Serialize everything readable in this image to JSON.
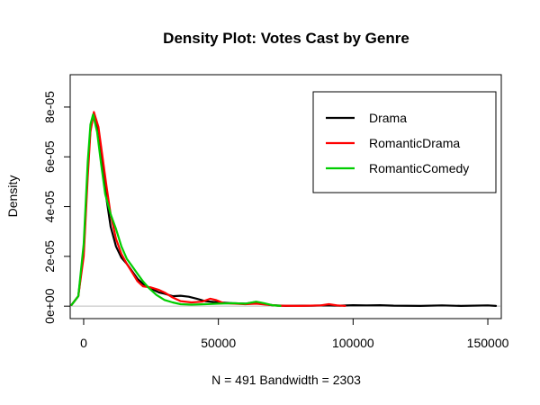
{
  "chart_data": {
    "type": "line",
    "title": "Density Plot: Votes Cast by Genre",
    "xlabel": "N = 491   Bandwidth = 2303",
    "ylabel": "Density",
    "xlim": [
      -5000,
      155000
    ],
    "ylim": [
      -5e-06,
      9.3e-05
    ],
    "x_ticks": [
      0,
      50000,
      100000,
      150000
    ],
    "x_tick_labels": [
      "0",
      "50000",
      "100000",
      "150000"
    ],
    "y_ticks": [
      0,
      2e-05,
      4e-05,
      6e-05,
      8e-05
    ],
    "y_tick_labels": [
      "0e+00",
      "2e-05",
      "4e-05",
      "6e-05",
      "8e-05"
    ],
    "baseline": 0,
    "baseline_color": "#bebebe",
    "legend_position": "top-right",
    "series": [
      {
        "name": "Drama",
        "color": "#000000",
        "points": [
          [
            -4500,
            5e-07
          ],
          [
            -2000,
            4e-06
          ],
          [
            0,
            2.2e-05
          ],
          [
            1500,
            5.5e-05
          ],
          [
            2500,
            7.1e-05
          ],
          [
            3800,
            7.75e-05
          ],
          [
            5500,
            7e-05
          ],
          [
            7000,
            5.6e-05
          ],
          [
            8500,
            4.3e-05
          ],
          [
            10000,
            3.2e-05
          ],
          [
            12000,
            2.4e-05
          ],
          [
            14000,
            1.95e-05
          ],
          [
            16000,
            1.7e-05
          ],
          [
            18000,
            1.4e-05
          ],
          [
            20000,
            1.1e-05
          ],
          [
            22000,
            9e-06
          ],
          [
            25000,
            7e-06
          ],
          [
            28000,
            5.5e-06
          ],
          [
            30000,
            5e-06
          ],
          [
            33000,
            4e-06
          ],
          [
            36000,
            4.2e-06
          ],
          [
            39000,
            3.8e-06
          ],
          [
            42000,
            3e-06
          ],
          [
            45000,
            2e-06
          ],
          [
            50000,
            1.5e-06
          ],
          [
            55000,
            1.2e-06
          ],
          [
            60000,
            1e-06
          ],
          [
            63000,
            1.5e-06
          ],
          [
            66000,
            1e-06
          ],
          [
            70000,
            4e-07
          ],
          [
            75000,
            1e-07
          ],
          [
            85000,
            2e-07
          ],
          [
            90000,
            3e-07
          ],
          [
            95000,
            2e-07
          ],
          [
            100000,
            4e-07
          ],
          [
            105000,
            3e-07
          ],
          [
            110000,
            4e-07
          ],
          [
            115000,
            2e-07
          ],
          [
            125000,
            1e-07
          ],
          [
            133000,
            3e-07
          ],
          [
            140000,
            1e-07
          ],
          [
            150000,
            3e-07
          ],
          [
            153000,
            1e-07
          ]
        ]
      },
      {
        "name": "RomanticDrama",
        "color": "#ff0000",
        "points": [
          [
            -4500,
            5e-07
          ],
          [
            -2000,
            4e-06
          ],
          [
            0,
            2e-05
          ],
          [
            1500,
            5.2e-05
          ],
          [
            2500,
            7e-05
          ],
          [
            3800,
            7.8e-05
          ],
          [
            5500,
            7.2e-05
          ],
          [
            7000,
            6e-05
          ],
          [
            8500,
            4.8e-05
          ],
          [
            10000,
            3.7e-05
          ],
          [
            12000,
            2.7e-05
          ],
          [
            14000,
            2.1e-05
          ],
          [
            16000,
            1.7e-05
          ],
          [
            18000,
            1.35e-05
          ],
          [
            20000,
            1e-05
          ],
          [
            22000,
            8e-06
          ],
          [
            25000,
            7.5e-06
          ],
          [
            28000,
            6.5e-06
          ],
          [
            30000,
            5.5e-06
          ],
          [
            33000,
            3.5e-06
          ],
          [
            36000,
            2e-06
          ],
          [
            40000,
            1.5e-06
          ],
          [
            44000,
            1.8e-06
          ],
          [
            47000,
            3e-06
          ],
          [
            49000,
            2.5e-06
          ],
          [
            52000,
            1.2e-06
          ],
          [
            56000,
            1e-06
          ],
          [
            60000,
            8e-07
          ],
          [
            64000,
            1e-06
          ],
          [
            68000,
            6e-07
          ],
          [
            72000,
            2e-07
          ],
          [
            80000,
            1e-07
          ],
          [
            88000,
            3e-07
          ],
          [
            91000,
            8e-07
          ],
          [
            94000,
            3e-07
          ],
          [
            97000,
            1e-07
          ]
        ]
      },
      {
        "name": "RomanticComedy",
        "color": "#00cd00",
        "points": [
          [
            -4500,
            5e-07
          ],
          [
            -2000,
            4e-06
          ],
          [
            0,
            2.5e-05
          ],
          [
            1500,
            5.8e-05
          ],
          [
            2500,
            7.3e-05
          ],
          [
            3500,
            7.7e-05
          ],
          [
            5000,
            7e-05
          ],
          [
            6500,
            5.7e-05
          ],
          [
            8000,
            4.5e-05
          ],
          [
            10000,
            3.7e-05
          ],
          [
            12000,
            3.1e-05
          ],
          [
            14000,
            2.4e-05
          ],
          [
            16000,
            1.9e-05
          ],
          [
            18000,
            1.6e-05
          ],
          [
            20000,
            1.3e-05
          ],
          [
            22000,
            1e-05
          ],
          [
            24000,
            7.5e-06
          ],
          [
            27000,
            4.5e-06
          ],
          [
            30000,
            2.5e-06
          ],
          [
            33000,
            1.5e-06
          ],
          [
            36000,
            8e-07
          ],
          [
            40000,
            6e-07
          ],
          [
            45000,
            8e-07
          ],
          [
            50000,
            1e-06
          ],
          [
            55000,
            1.2e-06
          ],
          [
            60000,
            1e-06
          ],
          [
            64000,
            1.8e-06
          ],
          [
            67000,
            1.2e-06
          ],
          [
            70000,
            4e-07
          ],
          [
            73000,
            1e-07
          ]
        ]
      }
    ]
  }
}
